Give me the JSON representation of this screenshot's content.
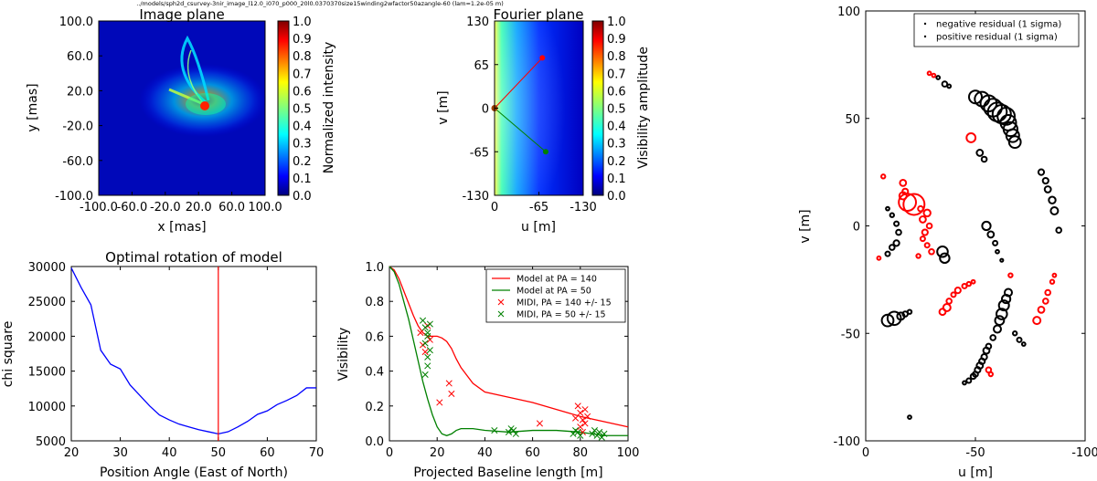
{
  "figure": {
    "header": "../models/sph2d_csurvey-3nir_image_l12.0_i070_p000_20l0.0370370size15winding2wfactor50azangle-60 (lam=1.2e-05 m)"
  },
  "chart_data": [
    {
      "id": "image_plane",
      "type": "heatmap",
      "title": "Image plane",
      "xlabel": "x [mas]",
      "ylabel": "y [mas]",
      "xticks": [
        "-100.0",
        "-60.0",
        "-20.0",
        "20.0",
        "60.0",
        "100.0"
      ],
      "yticks": [
        "100.0",
        "60.0",
        "20.0",
        "-20.0",
        "-60.0",
        "-100.0"
      ],
      "xlim": [
        -100,
        100
      ],
      "ylim": [
        -100,
        100
      ],
      "colorbar": {
        "label": "Normalized intensity",
        "range": [
          0,
          1
        ],
        "ticks": [
          "1.0",
          "0.9",
          "0.8",
          "0.7",
          "0.6",
          "0.5",
          "0.4",
          "0.3",
          "0.2",
          "0.1",
          "0.0"
        ]
      },
      "peak": {
        "x": 20,
        "y": 5
      }
    },
    {
      "id": "fourier_plane",
      "type": "heatmap",
      "title": "Fourier plane",
      "xlabel": "u [m]",
      "ylabel": "v [m]",
      "xticks": [
        "0",
        "-65",
        "-130"
      ],
      "yticks": [
        "130",
        "65",
        "0",
        "-65",
        "-130"
      ],
      "xlim": [
        0,
        -130
      ],
      "ylim": [
        -130,
        130
      ],
      "colorbar": {
        "label": "Visibility amplitude",
        "range": [
          0,
          1
        ],
        "ticks": [
          "1.0",
          "0.9",
          "0.8",
          "0.7",
          "0.6",
          "0.5",
          "0.4",
          "0.3",
          "0.2",
          "0.1",
          "0.0"
        ]
      },
      "lines": [
        {
          "color": "#ff0000",
          "from": [
            0,
            0
          ],
          "to": [
            -70,
            75
          ]
        },
        {
          "color": "#008000",
          "from": [
            0,
            0
          ],
          "to": [
            -75,
            -65
          ]
        }
      ]
    },
    {
      "id": "optimal_rotation",
      "type": "line",
      "title": "Optimal rotation of model",
      "xlabel": "Position Angle (East of North)",
      "ylabel": "chi square",
      "xlim": [
        20,
        70
      ],
      "ylim": [
        5000,
        30000
      ],
      "xticks": [
        20,
        30,
        40,
        50,
        60,
        70
      ],
      "yticks": [
        5000,
        10000,
        15000,
        20000,
        25000,
        30000
      ],
      "series": [
        {
          "color": "#0000ff",
          "x": [
            20,
            22,
            24,
            26,
            28,
            30,
            32,
            34,
            36,
            38,
            40,
            42,
            44,
            46,
            48,
            50,
            52,
            54,
            56,
            58,
            60,
            62,
            64,
            66,
            68,
            70
          ],
          "y": [
            29800,
            27000,
            24500,
            18000,
            16000,
            15300,
            13000,
            11500,
            10000,
            8700,
            8000,
            7400,
            7000,
            6600,
            6300,
            6000,
            6300,
            7000,
            7800,
            8800,
            9300,
            10200,
            10800,
            11500,
            12600,
            12600
          ]
        }
      ],
      "vline": {
        "x": 50,
        "color": "#ff0000"
      }
    },
    {
      "id": "visibility",
      "type": "line",
      "xlabel": "Projected Baseline length [m]",
      "ylabel": "Visibility",
      "xlim": [
        0,
        100
      ],
      "ylim": [
        0,
        1
      ],
      "xticks": [
        0,
        20,
        40,
        60,
        80,
        100
      ],
      "yticks": [
        "0.0",
        "0.2",
        "0.4",
        "0.6",
        "0.8",
        "1.0"
      ],
      "legend_position": "top-right",
      "series": [
        {
          "name": "Model at PA = 140",
          "style": "line",
          "color": "#ff0000",
          "x": [
            0,
            2,
            4,
            6,
            8,
            10,
            12,
            14,
            16,
            18,
            20,
            22,
            24,
            26,
            28,
            30,
            35,
            40,
            50,
            60,
            70,
            80,
            90,
            100
          ],
          "y": [
            1.0,
            0.98,
            0.93,
            0.86,
            0.79,
            0.72,
            0.66,
            0.62,
            0.6,
            0.6,
            0.6,
            0.59,
            0.57,
            0.53,
            0.47,
            0.42,
            0.33,
            0.28,
            0.25,
            0.22,
            0.18,
            0.14,
            0.11,
            0.08
          ]
        },
        {
          "name": "Model at PA = 50",
          "style": "line",
          "color": "#008000",
          "x": [
            0,
            2,
            4,
            6,
            8,
            10,
            12,
            14,
            16,
            18,
            20,
            22,
            24,
            26,
            28,
            30,
            35,
            40,
            50,
            60,
            70,
            80,
            90,
            100
          ],
          "y": [
            1.0,
            0.97,
            0.9,
            0.8,
            0.7,
            0.58,
            0.46,
            0.34,
            0.24,
            0.15,
            0.08,
            0.04,
            0.03,
            0.04,
            0.06,
            0.07,
            0.07,
            0.06,
            0.05,
            0.06,
            0.06,
            0.05,
            0.03,
            0.03
          ]
        },
        {
          "name": "MIDI, PA = 140 +/- 15",
          "style": "marker",
          "color": "#ff0000",
          "x": [
            13,
            14,
            15,
            16,
            17,
            21,
            25,
            26,
            63,
            79,
            80,
            81,
            82,
            83,
            80,
            81,
            82,
            78
          ],
          "y": [
            0.62,
            0.55,
            0.51,
            0.66,
            0.58,
            0.22,
            0.33,
            0.27,
            0.1,
            0.2,
            0.16,
            0.12,
            0.18,
            0.14,
            0.08,
            0.05,
            0.1,
            0.13
          ]
        },
        {
          "name": "MIDI, PA = 50 +/- 15",
          "style": "marker",
          "color": "#008000",
          "x": [
            14,
            15,
            15,
            16,
            16,
            16,
            17,
            17,
            15,
            16,
            44,
            50,
            51,
            52,
            53,
            77,
            78,
            79,
            80,
            85,
            86,
            87,
            88,
            89,
            90
          ],
          "y": [
            0.69,
            0.65,
            0.56,
            0.6,
            0.48,
            0.43,
            0.67,
            0.52,
            0.38,
            0.62,
            0.06,
            0.05,
            0.07,
            0.06,
            0.04,
            0.04,
            0.06,
            0.05,
            0.03,
            0.04,
            0.06,
            0.03,
            0.05,
            0.02,
            0.04
          ]
        }
      ]
    },
    {
      "id": "uv_residuals",
      "type": "scatter",
      "xlabel": "u [m]",
      "ylabel": "v [m]",
      "xlim": [
        0,
        -100
      ],
      "ylim": [
        -100,
        100
      ],
      "xticks": [
        "0",
        "-50",
        "-100"
      ],
      "yticks": [
        "100",
        "50",
        "0",
        "-50",
        "-100"
      ],
      "legend_position": "top-right",
      "series": [
        {
          "name": "negative residual (1 sigma)",
          "color": "#000000",
          "points": [
            [
              -33,
              69,
              0.3
            ],
            [
              -36,
              66,
              0.6
            ],
            [
              -38,
              65,
              0.3
            ],
            [
              -50,
              60,
              2.0
            ],
            [
              -53,
              59,
              2.3
            ],
            [
              -56,
              57,
              2.6
            ],
            [
              -58,
              55,
              2.9
            ],
            [
              -60,
              53,
              3.1
            ],
            [
              -62,
              52,
              3.0
            ],
            [
              -64,
              51,
              2.8
            ],
            [
              -65,
              48,
              2.5
            ],
            [
              -66,
              45,
              2.2
            ],
            [
              -67,
              42,
              2.0
            ],
            [
              -68,
              39,
              1.8
            ],
            [
              -52,
              34,
              0.8
            ],
            [
              -54,
              31,
              0.6
            ],
            [
              -80,
              25,
              0.7
            ],
            [
              -82,
              21,
              0.7
            ],
            [
              -83,
              17,
              0.8
            ],
            [
              -85,
              12,
              0.9
            ],
            [
              -86,
              7,
              1.0
            ],
            [
              -88,
              -2,
              0.6
            ],
            [
              -55,
              0,
              1.2
            ],
            [
              -57,
              -4,
              0.8
            ],
            [
              -59,
              -8,
              0.5
            ],
            [
              -60,
              -12,
              0.3
            ],
            [
              -62,
              -16,
              0.2
            ],
            [
              -35,
              -12,
              1.6
            ],
            [
              -36,
              -15,
              1.4
            ],
            [
              -10,
              8,
              0.3
            ],
            [
              -12,
              5,
              0.4
            ],
            [
              -14,
              1,
              0.5
            ],
            [
              -15,
              -3,
              0.6
            ],
            [
              -14,
              -8,
              0.7
            ],
            [
              -12,
              -10,
              0.6
            ],
            [
              -10,
              -13,
              0.5
            ],
            [
              -13,
              -43,
              2.1
            ],
            [
              -10,
              -44,
              1.8
            ],
            [
              -16,
              -42,
              1.0
            ],
            [
              -18,
              -41,
              0.6
            ],
            [
              -20,
              -40,
              0.4
            ],
            [
              -65,
              -31,
              1.0
            ],
            [
              -64,
              -34,
              1.2
            ],
            [
              -63,
              -37,
              1.5
            ],
            [
              -62,
              -41,
              1.6
            ],
            [
              -61,
              -44,
              1.3
            ],
            [
              -60,
              -48,
              1.0
            ],
            [
              -58,
              -52,
              0.6
            ],
            [
              -56,
              -56,
              0.6
            ],
            [
              -55,
              -58,
              0.8
            ],
            [
              -54,
              -61,
              0.7
            ],
            [
              -53,
              -63,
              0.7
            ],
            [
              -52,
              -65,
              0.8
            ],
            [
              -51,
              -67,
              0.7
            ],
            [
              -50,
              -69,
              0.6
            ],
            [
              -49,
              -70,
              0.6
            ],
            [
              -47,
              -72,
              0.5
            ],
            [
              -45,
              -73,
              0.3
            ],
            [
              -68,
              -50,
              0.4
            ],
            [
              -70,
              -53,
              0.5
            ],
            [
              -72,
              -55,
              0.3
            ],
            [
              -20,
              -89,
              0.3
            ]
          ]
        },
        {
          "name": "positive residual (1 sigma)",
          "color": "#ff0000",
          "points": [
            [
              -29,
              71,
              0.3
            ],
            [
              -31,
              70,
              0.3
            ],
            [
              -48,
              41,
              1.3
            ],
            [
              -17,
              20,
              0.8
            ],
            [
              -18,
              16,
              0.7
            ],
            [
              -17,
              14,
              1.0
            ],
            [
              -19,
              11,
              2.8
            ],
            [
              -22,
              10,
              3.5
            ],
            [
              -25,
              8,
              0.6
            ],
            [
              -28,
              6,
              0.9
            ],
            [
              -26,
              3,
              0.8
            ],
            [
              -29,
              0,
              0.6
            ],
            [
              -27,
              -3,
              0.7
            ],
            [
              -26,
              -6,
              0.5
            ],
            [
              -28,
              -9,
              0.5
            ],
            [
              -30,
              -12,
              0.6
            ],
            [
              -24,
              -14,
              0.4
            ],
            [
              -8,
              23,
              0.4
            ],
            [
              -6,
              -15,
              0.3
            ],
            [
              -42,
              -30,
              0.7
            ],
            [
              -45,
              -28,
              0.5
            ],
            [
              -47,
              -27,
              0.4
            ],
            [
              -49,
              -26,
              0.3
            ],
            [
              -40,
              -32,
              0.5
            ],
            [
              -38,
              -35,
              0.6
            ],
            [
              -37,
              -38,
              1.0
            ],
            [
              -35,
              -40,
              0.8
            ],
            [
              -66,
              -23,
              0.4
            ],
            [
              -78,
              -44,
              1.0
            ],
            [
              -80,
              -39,
              0.8
            ],
            [
              -82,
              -35,
              0.6
            ],
            [
              -83,
              -31,
              0.6
            ],
            [
              -85,
              -26,
              0.4
            ],
            [
              -86,
              -23,
              0.3
            ],
            [
              -56,
              -67,
              0.6
            ],
            [
              -57,
              -69,
              0.4
            ]
          ]
        }
      ]
    }
  ]
}
